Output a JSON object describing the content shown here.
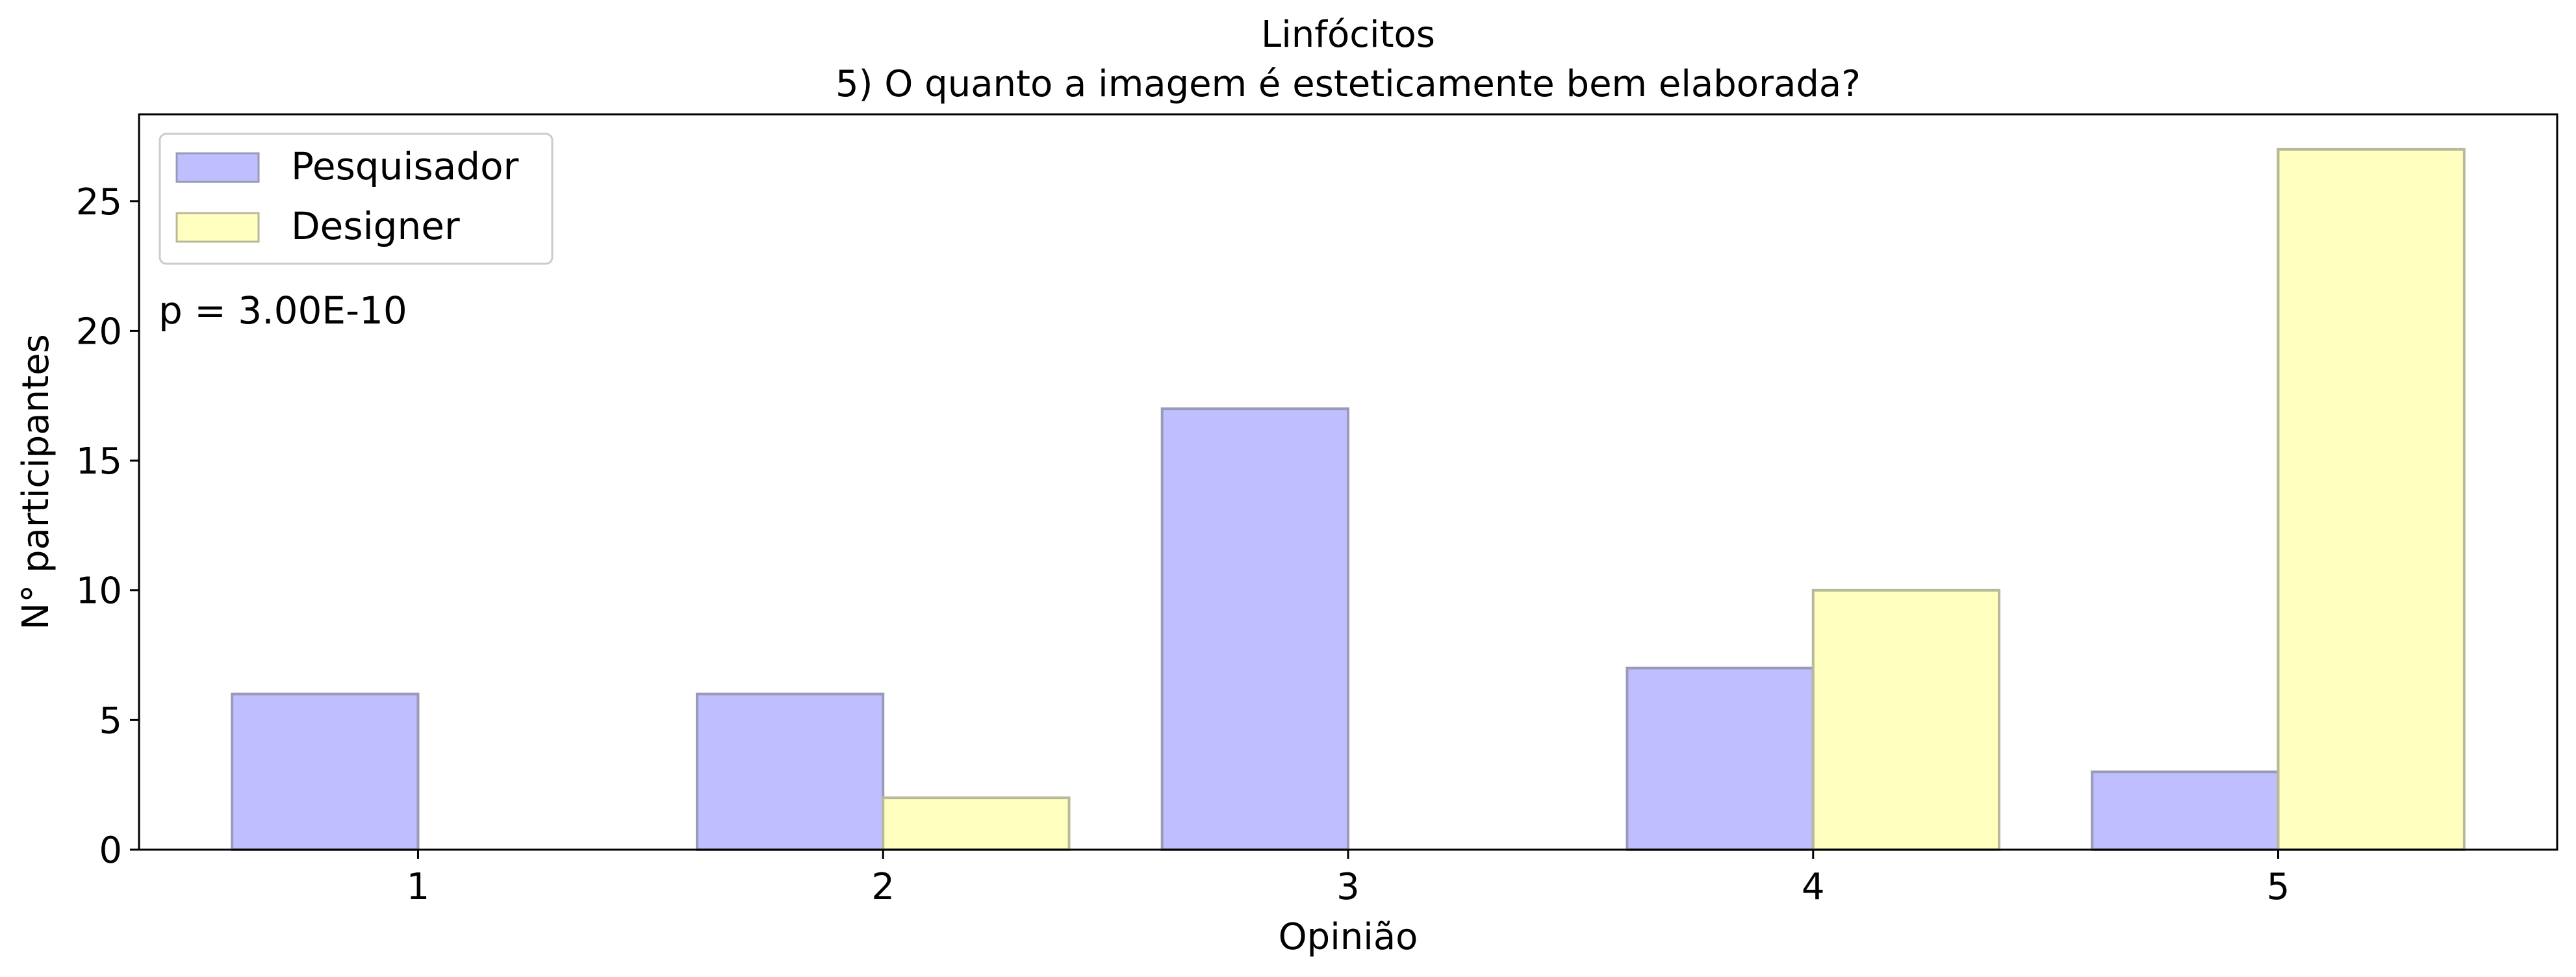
{
  "chart_data": {
    "type": "bar",
    "title": "Linfócitos",
    "subtitle": "5) O quanto a imagem é esteticamente bem elaborada?",
    "xlabel": "Opinião",
    "ylabel": "N° participantes",
    "categories": [
      "1",
      "2",
      "3",
      "4",
      "5"
    ],
    "series": [
      {
        "name": "Pesquisador",
        "values": [
          6,
          6,
          17,
          7,
          3
        ],
        "color": "#bfbfff",
        "edge": "#9a9ab8"
      },
      {
        "name": "Designer",
        "values": [
          0,
          2,
          0,
          10,
          27
        ],
        "color": "#ffffbf",
        "edge": "#b8b89a"
      }
    ],
    "ylim": [
      0,
      28.35
    ],
    "yticks": [
      0,
      5,
      10,
      15,
      20,
      25
    ],
    "annotation": "p = 3.00E-10",
    "legend_position": "top-left",
    "grid": false
  }
}
